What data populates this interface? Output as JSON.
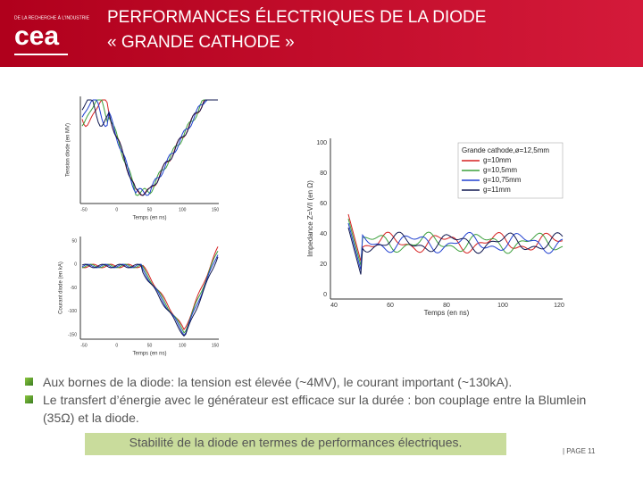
{
  "header": {
    "org": "DE LA RECHERCHE À L'INDUSTRIE",
    "logo": "cea",
    "title_lines": [
      "PERFORMANCES ÉLECTRIQUES DE LA DIODE",
      "« GRANDE CATHODE »"
    ]
  },
  "figures": {
    "voltage": {
      "y_label": "Tension diode (en MV)",
      "x_label": "Temps (en ns)",
      "xticks": [
        "-50",
        "0",
        "50",
        "100",
        "150"
      ]
    },
    "current": {
      "y_label": "Courant diode (en kA)",
      "x_label": "Temps (en ns)",
      "yticks": [
        "50",
        "0",
        "-50",
        "-100",
        "-150"
      ],
      "xticks": [
        "-50",
        "0",
        "50",
        "100",
        "150"
      ]
    },
    "impedance": {
      "y_label": "Impedance Z=V/I (en Ω)",
      "x_label": "Temps (en ns)",
      "yticks": [
        "100",
        "80",
        "60",
        "40",
        "20",
        "0"
      ],
      "xticks": [
        "40",
        "60",
        "80",
        "100",
        "120"
      ],
      "legend": {
        "title": "Grande cathode,ø=12,5mm",
        "entries": [
          "g=10mm",
          "g=10,5mm",
          "g=10,75mm",
          "g=11mm"
        ]
      }
    }
  },
  "bullets": [
    "Aux bornes de la diode: la tension est élevée (~4MV), le courant  important (~130kA).",
    "Le transfert d’énergie avec le générateur est efficace sur la durée : bon couplage entre la Blumlein (35Ω) et la diode."
  ],
  "highlight": "Stabilité de la diode en termes de performances électriques.",
  "footer": "| PAGE 11"
}
